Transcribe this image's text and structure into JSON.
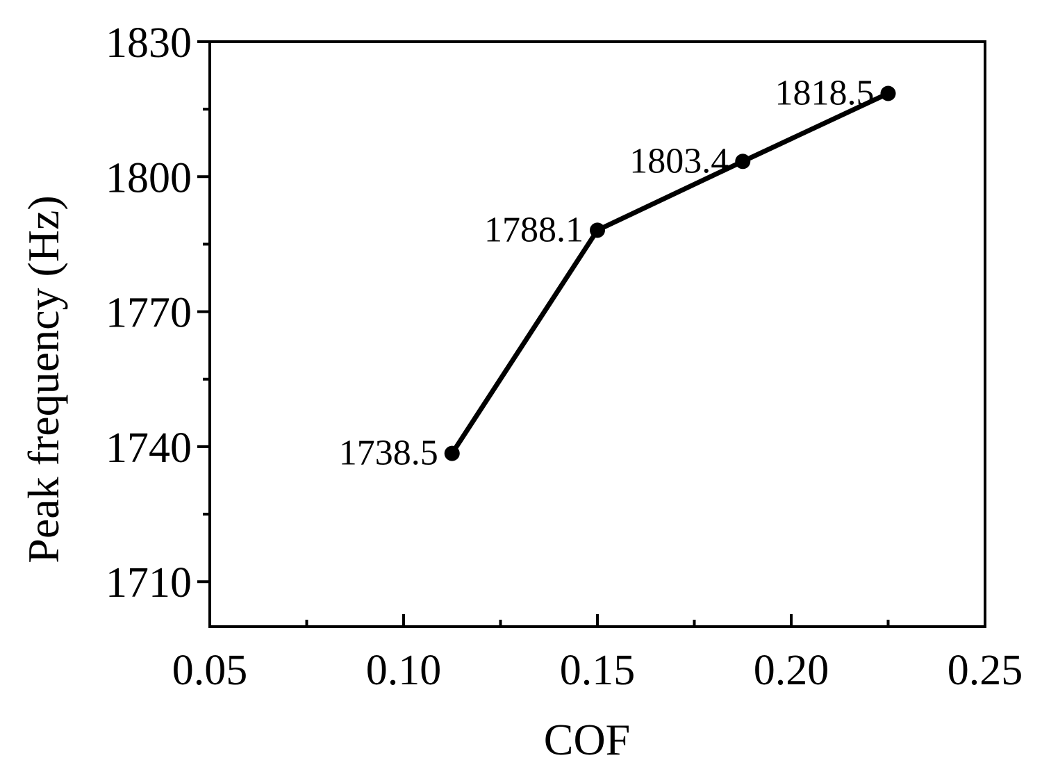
{
  "chart_data": {
    "type": "line",
    "title": "",
    "xlabel": "COF",
    "ylabel": "Peak frequency (Hz)",
    "xlim": [
      0.05,
      0.25
    ],
    "ylim": [
      1700,
      1830
    ],
    "x_ticks": [
      "0.05",
      "0.10",
      "0.15",
      "0.20",
      "0.25"
    ],
    "y_ticks": [
      "1710",
      "1740",
      "1770",
      "1800",
      "1830"
    ],
    "grid": false,
    "legend": "none",
    "series": [
      {
        "x": [
          0.1125,
          0.15,
          0.1875,
          0.225
        ],
        "y": [
          1738.5,
          1788.1,
          1803.4,
          1818.5
        ],
        "labels": [
          "1738.5",
          "1788.1",
          "1803.4",
          "1818.5"
        ],
        "color": "#000000",
        "marker": "circle"
      }
    ]
  }
}
